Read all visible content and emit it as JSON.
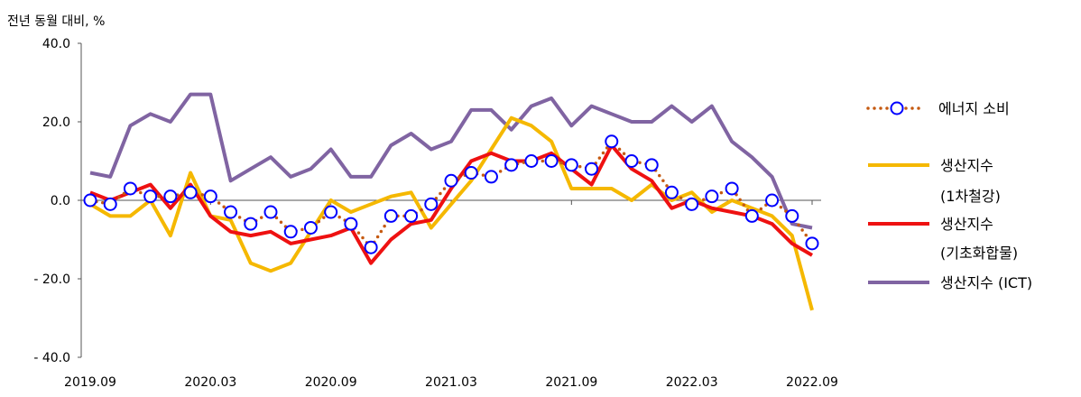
{
  "chart_data": {
    "type": "line",
    "ylabel": "전년 동월 대비, %",
    "ylim": [
      -40,
      40
    ],
    "yticks": [
      40,
      20,
      0,
      -20,
      -40
    ],
    "ytick_labels": [
      "40.0",
      "20.0",
      "0.0",
      "- 20.0",
      "- 40.0"
    ],
    "xtick_labels": [
      "2019.09",
      "2020.03",
      "2020.09",
      "2021.03",
      "2021.09",
      "2022.03",
      "2022.09"
    ],
    "x": [
      "2019.09",
      "2019.10",
      "2019.11",
      "2019.12",
      "2020.01",
      "2020.02",
      "2020.03",
      "2020.04",
      "2020.05",
      "2020.06",
      "2020.07",
      "2020.08",
      "2020.09",
      "2020.10",
      "2020.11",
      "2020.12",
      "2021.01",
      "2021.02",
      "2021.03",
      "2021.04",
      "2021.05",
      "2021.06",
      "2021.07",
      "2021.08",
      "2021.09",
      "2021.10",
      "2021.11",
      "2021.12",
      "2022.01",
      "2022.02",
      "2022.03",
      "2022.04",
      "2022.05",
      "2022.06",
      "2022.07",
      "2022.08",
      "2022.09"
    ],
    "legend_position": "right",
    "grid": false,
    "series": [
      {
        "name": "에너지 소비",
        "color": "#c55a11",
        "marker_color": "#0000ff",
        "style": "dotted-with-circle-markers",
        "values": [
          0,
          -1,
          3,
          1,
          1,
          2,
          1,
          -3,
          -6,
          -3,
          -8,
          -7,
          -3,
          -6,
          -12,
          -4,
          -4,
          -1,
          5,
          7,
          6,
          9,
          10,
          10,
          9,
          8,
          15,
          10,
          9,
          2,
          -1,
          1,
          3,
          -4,
          0,
          -4,
          -11
        ]
      },
      {
        "name": "생산지수",
        "name_line2": "(1차철강)",
        "color": "#f5b800",
        "style": "solid",
        "values": [
          -1,
          -4,
          -4,
          0,
          -9,
          7,
          -4,
          -5,
          -16,
          -18,
          -16,
          -8,
          0,
          -3,
          -1,
          1,
          2,
          -7,
          -1,
          5,
          13,
          21,
          19,
          15,
          3,
          3,
          3,
          0,
          4,
          0,
          2,
          -3,
          0,
          -2,
          -4,
          -9,
          -28
        ]
      },
      {
        "name": "생산지수",
        "name_line2": "(기초화합물)",
        "color": "#ee1111",
        "style": "solid",
        "values": [
          2,
          0,
          2,
          4,
          -2,
          4,
          -4,
          -8,
          -9,
          -8,
          -11,
          -10,
          -9,
          -7,
          -16,
          -10,
          -6,
          -5,
          3,
          10,
          12,
          10,
          10,
          12,
          8,
          4,
          14,
          8,
          5,
          -2,
          0,
          -2,
          -3,
          -4,
          -6,
          -11,
          -14
        ]
      },
      {
        "name": "생산지수 (ICT)",
        "color": "#8064a2",
        "style": "solid",
        "values": [
          7,
          6,
          19,
          22,
          20,
          27,
          27,
          5,
          8,
          11,
          6,
          8,
          13,
          6,
          6,
          14,
          17,
          13,
          15,
          23,
          23,
          18,
          24,
          26,
          19,
          24,
          22,
          20,
          20,
          24,
          20,
          24,
          15,
          11,
          6,
          -6,
          -7
        ]
      }
    ]
  }
}
